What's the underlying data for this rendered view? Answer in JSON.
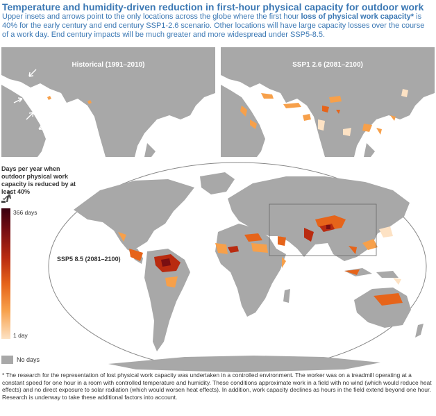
{
  "title": "Temperature and humidity-driven reduction in first-hour physical capacity for outdoor work",
  "intro": {
    "before": "Upper insets and arrows point to the only locations across the globe where the first hour ",
    "bold": "loss of physical work capacity*",
    "after": " is 40% for the early century and end century SSP1-2.6 scenario. Other locations will have large capacity losses over the course of a work day. End century impacts will be much greater and more widespread under SSP5-8.5."
  },
  "insets": [
    {
      "label": "Historical (1991–2010)"
    },
    {
      "label": "SSP1 2.6 (2081–2100)"
    }
  ],
  "main_map": {
    "label": "SSP5 8.5 (2081–2100)"
  },
  "legend": {
    "title": "Days per year when outdoor physical work capacity is reduced by at least 40%",
    "icon": "outdoor-worker-icon",
    "max_label": "366 days",
    "min_label": "1 day",
    "no_data_label": "No days",
    "colors": {
      "high": "#3a0010",
      "mid": "#e6641a",
      "low": "#fde2c4",
      "none": "#a8a8a8"
    }
  },
  "footnote": "* The research for the representation of lost physical work capacity was undertaken in a controlled environment. The worker was on a treadmill operating at a constant speed for one hour in a room with controlled temperature and humidity. These conditions approximate work in a field with no wind (which would reduce heat effects) and no direct exposure to solar radiation (which would worsen heat effects). In addition, work capacity declines as hours in the field extend beyond one hour. Research is underway to take these additional factors into account."
}
